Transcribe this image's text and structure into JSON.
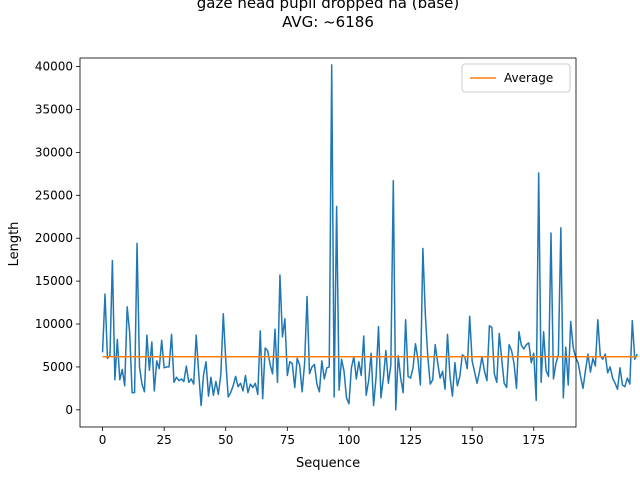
{
  "chart_data": {
    "type": "line",
    "title_line1": "gaze head pupil dropped na (base)",
    "title_line2": "AVG: ~6186",
    "xlabel": "Sequence",
    "ylabel": "Length",
    "xlim": [
      -9.15,
      192.15
    ],
    "ylim": [
      -2000,
      41000
    ],
    "xticks": [
      0,
      25,
      50,
      75,
      100,
      125,
      150,
      175
    ],
    "yticks": [
      0,
      5000,
      10000,
      15000,
      20000,
      25000,
      30000,
      35000,
      40000
    ],
    "grid": false,
    "legend_position": "top-right",
    "legend": [
      "Average"
    ],
    "average": 6186,
    "colors": {
      "data": "#1f77b4",
      "average": "#ff7f0e"
    },
    "series": [
      {
        "values": [
          6700,
          13500,
          6000,
          6300,
          17400,
          3500,
          8200,
          3500,
          4700,
          2800,
          12000,
          9000,
          2000,
          2000,
          19400,
          5000,
          3000,
          2100,
          8700,
          4600,
          7900,
          2200,
          5700,
          4800,
          8100,
          4900,
          5000,
          5000,
          8800,
          3200,
          3800,
          3400,
          3600,
          3300,
          5100,
          3200,
          3600,
          3000,
          8700,
          4400,
          500,
          4100,
          5600,
          1600,
          3800,
          1700,
          3300,
          1800,
          4100,
          11200,
          5800,
          1500,
          2000,
          2800,
          3900,
          2700,
          3100,
          2200,
          4000,
          2000,
          3000,
          2600,
          3100,
          1800,
          9200,
          1300,
          7200,
          6900,
          5300,
          4200,
          9400,
          3200,
          15700,
          8500,
          10600,
          4000,
          5600,
          5400,
          2600,
          6000,
          5200,
          2100,
          5400,
          13200,
          4200,
          5000,
          5300,
          3000,
          2100,
          5700,
          3600,
          4900,
          5000,
          40200,
          1500,
          23700,
          2300,
          5900,
          4500,
          1400,
          700,
          4900,
          6200,
          3600,
          5600,
          4000,
          8600,
          1700,
          3400,
          6600,
          500,
          3800,
          9700,
          1400,
          3800,
          6900,
          3100,
          5200,
          26700,
          0,
          6300,
          3700,
          2000,
          10500,
          3900,
          3700,
          4900,
          7700,
          5900,
          2900,
          18800,
          11100,
          6200,
          3000,
          3500,
          7600,
          5500,
          3700,
          4500,
          2400,
          8800,
          3900,
          1600,
          5500,
          2800,
          3900,
          6400,
          6200,
          4800,
          10900,
          5700,
          4400,
          3100,
          4500,
          6200,
          4500,
          3400,
          9800,
          9600,
          4200,
          3200,
          8900,
          5900,
          3100,
          2600,
          7600,
          6900,
          5400,
          2500,
          9100,
          7500,
          7100,
          7600,
          7800,
          5500,
          6600,
          1100,
          27600,
          3200,
          9100,
          4600,
          3900,
          20600,
          3600,
          5400,
          6400,
          21200,
          1400,
          7300,
          2900,
          10300,
          7300,
          6100,
          5500,
          3900,
          2500,
          4600,
          6500,
          4400,
          6000,
          5100,
          10500,
          6300,
          5900,
          6500,
          4300,
          5000,
          3700,
          3100,
          2400,
          4900,
          2900,
          2700,
          3700,
          3000,
          10400,
          5900,
          6500
        ]
      }
    ]
  }
}
